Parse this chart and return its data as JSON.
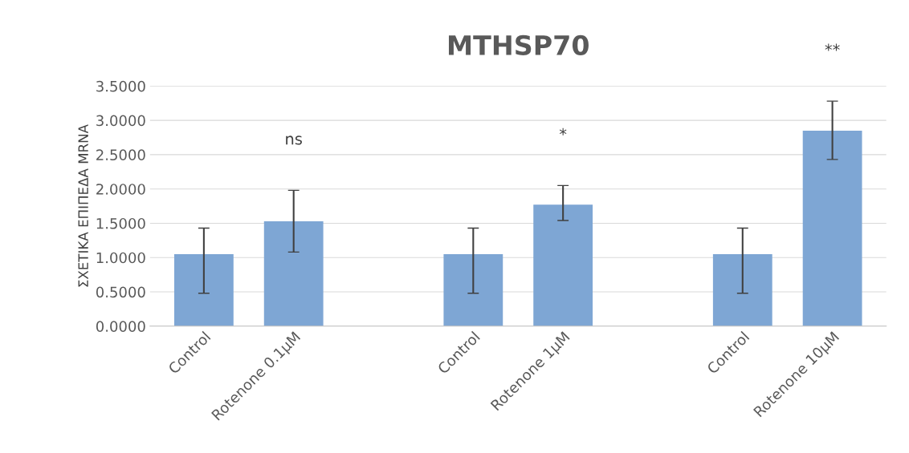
{
  "chart_data": {
    "type": "bar",
    "title": "MTHSP70",
    "ylabel": "ΣΧΕΤΙΚΑ ΕΠΙΠΕΔΑ MRNA",
    "categories": [
      "Control",
      "Rotenone 0.1μM",
      null,
      "Control",
      "Rotenone 1μM",
      null,
      "Control",
      "Rotenone 10μM"
    ],
    "values": [
      1.05,
      1.53,
      null,
      1.05,
      1.77,
      null,
      1.05,
      2.85
    ],
    "errors": [
      [
        0.48,
        1.43
      ],
      [
        1.08,
        1.98
      ],
      null,
      [
        0.48,
        1.43
      ],
      [
        1.54,
        2.05
      ],
      null,
      [
        0.48,
        1.43
      ],
      [
        2.43,
        3.28
      ]
    ],
    "color": "#7ea6d4",
    "ylim": [
      0,
      3.5
    ],
    "yticks": [
      {
        "value": 0,
        "label": "0.0000"
      },
      {
        "value": 0.5,
        "label": "0.5000"
      },
      {
        "value": 1,
        "label": "1.0000"
      },
      {
        "value": 1.5,
        "label": "1.5000"
      },
      {
        "value": 2,
        "label": "2.0000"
      },
      {
        "value": 2.5,
        "label": "2.5000"
      },
      {
        "value": 3,
        "label": "3.0000"
      },
      {
        "value": 3.5,
        "label": "3.5000"
      }
    ],
    "grid": "y",
    "annotations": [
      "ns",
      "*",
      "**"
    ]
  }
}
